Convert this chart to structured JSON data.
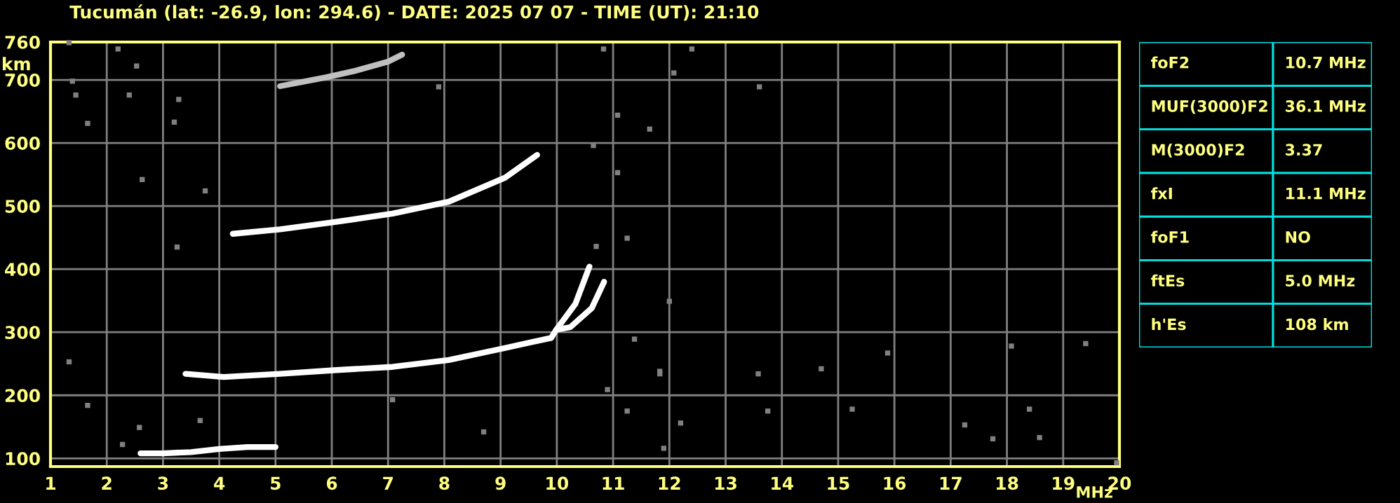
{
  "chart_data": [
    {
      "type": "line",
      "title": "Tucumán (lat: -26.9, lon: 294.6) - DATE: 2025 07 07 - TIME (UT): 21:10",
      "xlabel": "MHz",
      "ylabel": "km",
      "xlim": [
        1,
        20
      ],
      "ylim": [
        87,
        760
      ],
      "xticks": [
        1,
        2,
        3,
        4,
        5,
        6,
        7,
        8,
        9,
        10,
        11,
        12,
        13,
        14,
        15,
        16,
        17,
        18,
        19,
        20
      ],
      "yticks": [
        100,
        200,
        300,
        400,
        500,
        600,
        700,
        760
      ],
      "grid": true,
      "series": [
        {
          "type": "line",
          "color": "#ffffff",
          "x": [
            2.6,
            3.0,
            3.5,
            4.0,
            4.5,
            5.0
          ],
          "values": [
            108,
            108,
            110,
            115,
            118,
            118
          ]
        },
        {
          "type": "line",
          "color": "#ffffff",
          "x": [
            3.4,
            4.08,
            5.08,
            6.08,
            7.08,
            8.08,
            9.08,
            9.9,
            9.99,
            10.33,
            10.58
          ],
          "values": [
            234,
            229,
            234,
            240,
            245,
            256,
            275,
            291,
            304,
            345,
            404
          ]
        },
        {
          "type": "line",
          "color": "#ffffff",
          "x": [
            9.99,
            10.24,
            10.62,
            10.84
          ],
          "values": [
            304,
            308,
            338,
            380
          ]
        },
        {
          "type": "line",
          "color": "#ffffff",
          "x": [
            4.24,
            5.08,
            6.08,
            7.08,
            8.08,
            9.08,
            9.65
          ],
          "values": [
            456,
            463,
            475,
            488,
            507,
            545,
            581
          ]
        },
        {
          "type": "line",
          "color": "#c0c0c0",
          "x": [
            5.08,
            5.9,
            6.4,
            7.0,
            7.25
          ],
          "values": [
            690,
            704,
            714,
            729,
            740
          ]
        },
        {
          "type": "scatter",
          "color": "#808080",
          "marker": "square",
          "x": [
            1.33,
            1.39,
            1.45,
            1.66,
            2.2,
            2.53,
            2.4,
            3.28,
            3.2,
            7.9,
            10.83,
            11.08,
            11.65,
            12.4,
            12.08,
            1.33,
            1.66,
            2.58,
            2.28,
            3.66,
            7.08,
            8.7,
            10.9,
            11.25,
            11.9,
            12.2,
            11.83,
            13.58,
            14.7,
            15.88,
            13.75,
            15.25,
            17.25,
            17.75,
            18.4,
            18.58,
            19.95,
            19.4,
            18.08,
            2.63,
            3.75,
            3.25,
            10.65,
            11.08,
            11.25,
            10.7,
            11.38,
            11.83,
            12.0,
            13.6
          ],
          "values": [
            759,
            698,
            676,
            631,
            749,
            722,
            676,
            669,
            633,
            689,
            749,
            644,
            622,
            749,
            711,
            253,
            184,
            149,
            122,
            160,
            193,
            142,
            209,
            175,
            116,
            156,
            238,
            234,
            242,
            267,
            175,
            178,
            153,
            131,
            178,
            133,
            93,
            282,
            278,
            542,
            524,
            435,
            596,
            553,
            449,
            436,
            289,
            234,
            349,
            689
          ]
        }
      ]
    },
    {
      "type": "other",
      "annotations": [
        "foF2",
        "10.7 MHz",
        "MUF(3000)F2",
        "36.1 MHz",
        "M(3000)F2",
        "3.37",
        "fxI",
        "11.1 MHz",
        "foF1",
        "NO",
        "ftEs",
        "5.0 MHz",
        "h'Es",
        "108 km"
      ]
    }
  ]
}
